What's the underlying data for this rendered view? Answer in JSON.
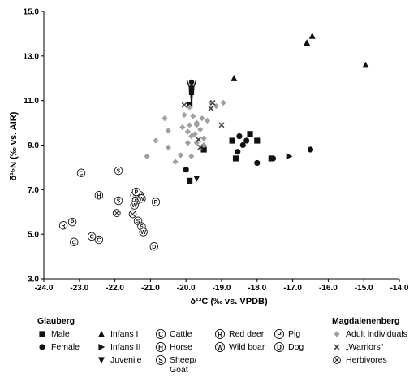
{
  "chart_data": {
    "type": "scatter",
    "xlabel": "δ¹³C (‰ vs. VPDB)",
    "ylabel": "δ¹⁵N (‰ vs. AIR)",
    "xlim": [
      -24.0,
      -14.0
    ],
    "ylim": [
      3.0,
      15.0
    ],
    "x_ticks": [
      "-24.0",
      "-23.0",
      "-22.0",
      "-21.0",
      "-20.0",
      "-19.0",
      "-18.0",
      "-17.0",
      "-16.0",
      "-15.0",
      "-14.0"
    ],
    "y_ticks": [
      "3.0",
      "5.0",
      "7.0",
      "9.0",
      "11.0",
      "13.0",
      "15.0"
    ],
    "grid": false,
    "legend_placement": "bottom",
    "series": [
      {
        "key": "male",
        "group": "Glauberg",
        "name": "Male",
        "marker": "square",
        "color": "#111111",
        "points": [
          [
            -19.9,
            10.8
          ],
          [
            -19.5,
            8.8
          ],
          [
            -18.7,
            9.2
          ],
          [
            -18.6,
            8.4
          ],
          [
            -18.2,
            9.5
          ],
          [
            -18.0,
            9.2
          ],
          [
            -19.9,
            7.4
          ],
          [
            -17.6,
            8.4
          ]
        ]
      },
      {
        "key": "female",
        "group": "Glauberg",
        "name": "Female",
        "marker": "circle",
        "color": "#111111",
        "points": [
          [
            -20.0,
            7.9
          ],
          [
            -18.5,
            9.4
          ],
          [
            -18.4,
            9.0
          ],
          [
            -18.55,
            8.7
          ],
          [
            -18.0,
            8.2
          ],
          [
            -17.55,
            8.4
          ],
          [
            -18.3,
            9.2
          ],
          [
            -16.5,
            8.8
          ]
        ]
      },
      {
        "key": "infans1",
        "group": "Glauberg",
        "name": "Infans I",
        "marker": "triangle-up",
        "color": "#111111",
        "points": [
          [
            -18.65,
            12.0
          ],
          [
            -16.6,
            13.6
          ],
          [
            -16.45,
            13.9
          ],
          [
            -14.95,
            12.6
          ]
        ]
      },
      {
        "key": "infans2",
        "group": "Glauberg",
        "name": "Infans II",
        "marker": "triangle-right",
        "color": "#111111",
        "points": [
          [
            -17.1,
            8.5
          ]
        ]
      },
      {
        "key": "juvenile",
        "group": "Glauberg",
        "name": "Juvenile",
        "marker": "triangle-down",
        "color": "#111111",
        "points": [
          [
            -19.7,
            7.5
          ]
        ]
      },
      {
        "key": "cattle",
        "group": "Glauberg",
        "name": "Cattle",
        "marker": "circle-letter",
        "letter": "C",
        "color": "#111111",
        "points": [
          [
            -22.95,
            7.75
          ],
          [
            -23.15,
            4.65
          ],
          [
            -22.65,
            4.9
          ],
          [
            -22.45,
            4.75
          ]
        ]
      },
      {
        "key": "horse",
        "group": "Glauberg",
        "name": "Horse",
        "marker": "circle-letter",
        "letter": "H",
        "color": "#111111",
        "points": [
          [
            -22.45,
            6.75
          ]
        ]
      },
      {
        "key": "sheep",
        "group": "Glauberg",
        "name": "Sheep/ Goat",
        "marker": "circle-letter",
        "letter": "S",
        "color": "#111111",
        "points": [
          [
            -21.9,
            7.85
          ],
          [
            -21.9,
            6.5
          ],
          [
            -21.45,
            6.75
          ],
          [
            -21.4,
            6.5
          ],
          [
            -21.35,
            5.6
          ],
          [
            -21.25,
            5.35
          ]
        ]
      },
      {
        "key": "reddeer",
        "group": "Glauberg",
        "name": "Red deer",
        "marker": "circle-letter",
        "letter": "R",
        "color": "#111111",
        "points": [
          [
            -23.45,
            5.4
          ]
        ]
      },
      {
        "key": "wildboar",
        "group": "Glauberg",
        "name": "Wild boar",
        "marker": "circle-letter",
        "letter": "W",
        "color": "#111111",
        "points": [
          [
            -21.45,
            6.3
          ],
          [
            -21.3,
            6.75
          ],
          [
            -21.25,
            6.6
          ],
          [
            -21.2,
            5.1
          ]
        ]
      },
      {
        "key": "pig",
        "group": "Glauberg",
        "name": "Pig",
        "marker": "circle-letter",
        "letter": "P",
        "color": "#111111",
        "points": [
          [
            -23.2,
            5.55
          ],
          [
            -20.85,
            6.45
          ],
          [
            -21.4,
            6.9
          ]
        ]
      },
      {
        "key": "dog",
        "group": "Glauberg",
        "name": "Dog",
        "marker": "circle-letter",
        "letter": "D",
        "color": "#111111",
        "points": [
          [
            -20.9,
            4.45
          ]
        ]
      },
      {
        "key": "adult",
        "group": "Magdalenenberg",
        "name": "Adult individuals",
        "marker": "diamond",
        "color": "#a0a0a0",
        "points": [
          [
            -20.6,
            10.2
          ],
          [
            -20.5,
            9.65
          ],
          [
            -20.5,
            8.9
          ],
          [
            -20.1,
            9.8
          ],
          [
            -20.05,
            10.35
          ],
          [
            -19.95,
            9.6
          ],
          [
            -19.9,
            9.9
          ],
          [
            -19.85,
            9.4
          ],
          [
            -19.8,
            10.3
          ],
          [
            -19.75,
            9.5
          ],
          [
            -19.7,
            9.9
          ],
          [
            -19.7,
            9.1
          ],
          [
            -19.6,
            9.7
          ],
          [
            -19.55,
            10.2
          ],
          [
            -19.5,
            9.3
          ],
          [
            -19.5,
            9.0
          ],
          [
            -19.3,
            10.9
          ],
          [
            -19.15,
            10.75
          ],
          [
            -18.95,
            10.9
          ],
          [
            -20.15,
            8.55
          ],
          [
            -20.3,
            8.25
          ],
          [
            -20.85,
            9.2
          ],
          [
            -21.1,
            8.5
          ],
          [
            -19.85,
            8.5
          ],
          [
            -19.4,
            10.1
          ],
          [
            -19.9,
            10.7
          ],
          [
            -19.7,
            10.0
          ],
          [
            -19.95,
            9.1
          ]
        ]
      },
      {
        "key": "warriors",
        "group": "Magdalenenberg",
        "name": "„Warriors“",
        "marker": "crossed-square",
        "color": "#444444",
        "points": [
          [
            -20.05,
            10.8
          ],
          [
            -19.25,
            10.9
          ],
          [
            -19.3,
            10.65
          ],
          [
            -19.0,
            9.9
          ],
          [
            -19.65,
            9.25
          ],
          [
            -19.6,
            8.9
          ]
        ]
      },
      {
        "key": "herbivores",
        "group": "Magdalenenberg",
        "name": "Herbivores",
        "marker": "circle-x",
        "color": "#111111",
        "points": [
          [
            -21.95,
            5.95
          ],
          [
            -21.5,
            5.9
          ]
        ]
      }
    ],
    "legend": {
      "groups": [
        "Glauberg",
        "Magdalenenberg"
      ],
      "layout_glauberg": [
        [
          {
            "key": "male"
          },
          {
            "key": "infans1"
          },
          {
            "key": "cattle"
          },
          {
            "key": "reddeer"
          },
          {
            "key": "pig"
          }
        ],
        [
          {
            "key": "female"
          },
          {
            "key": "infans2"
          },
          {
            "key": "horse"
          },
          {
            "key": "wildboar"
          },
          {
            "key": "dog"
          }
        ],
        [
          null,
          {
            "key": "juvenile"
          },
          {
            "key": "sheep"
          },
          null,
          null
        ]
      ],
      "layout_magdalenenberg": [
        "adult",
        "warriors",
        "herbivores"
      ]
    }
  }
}
